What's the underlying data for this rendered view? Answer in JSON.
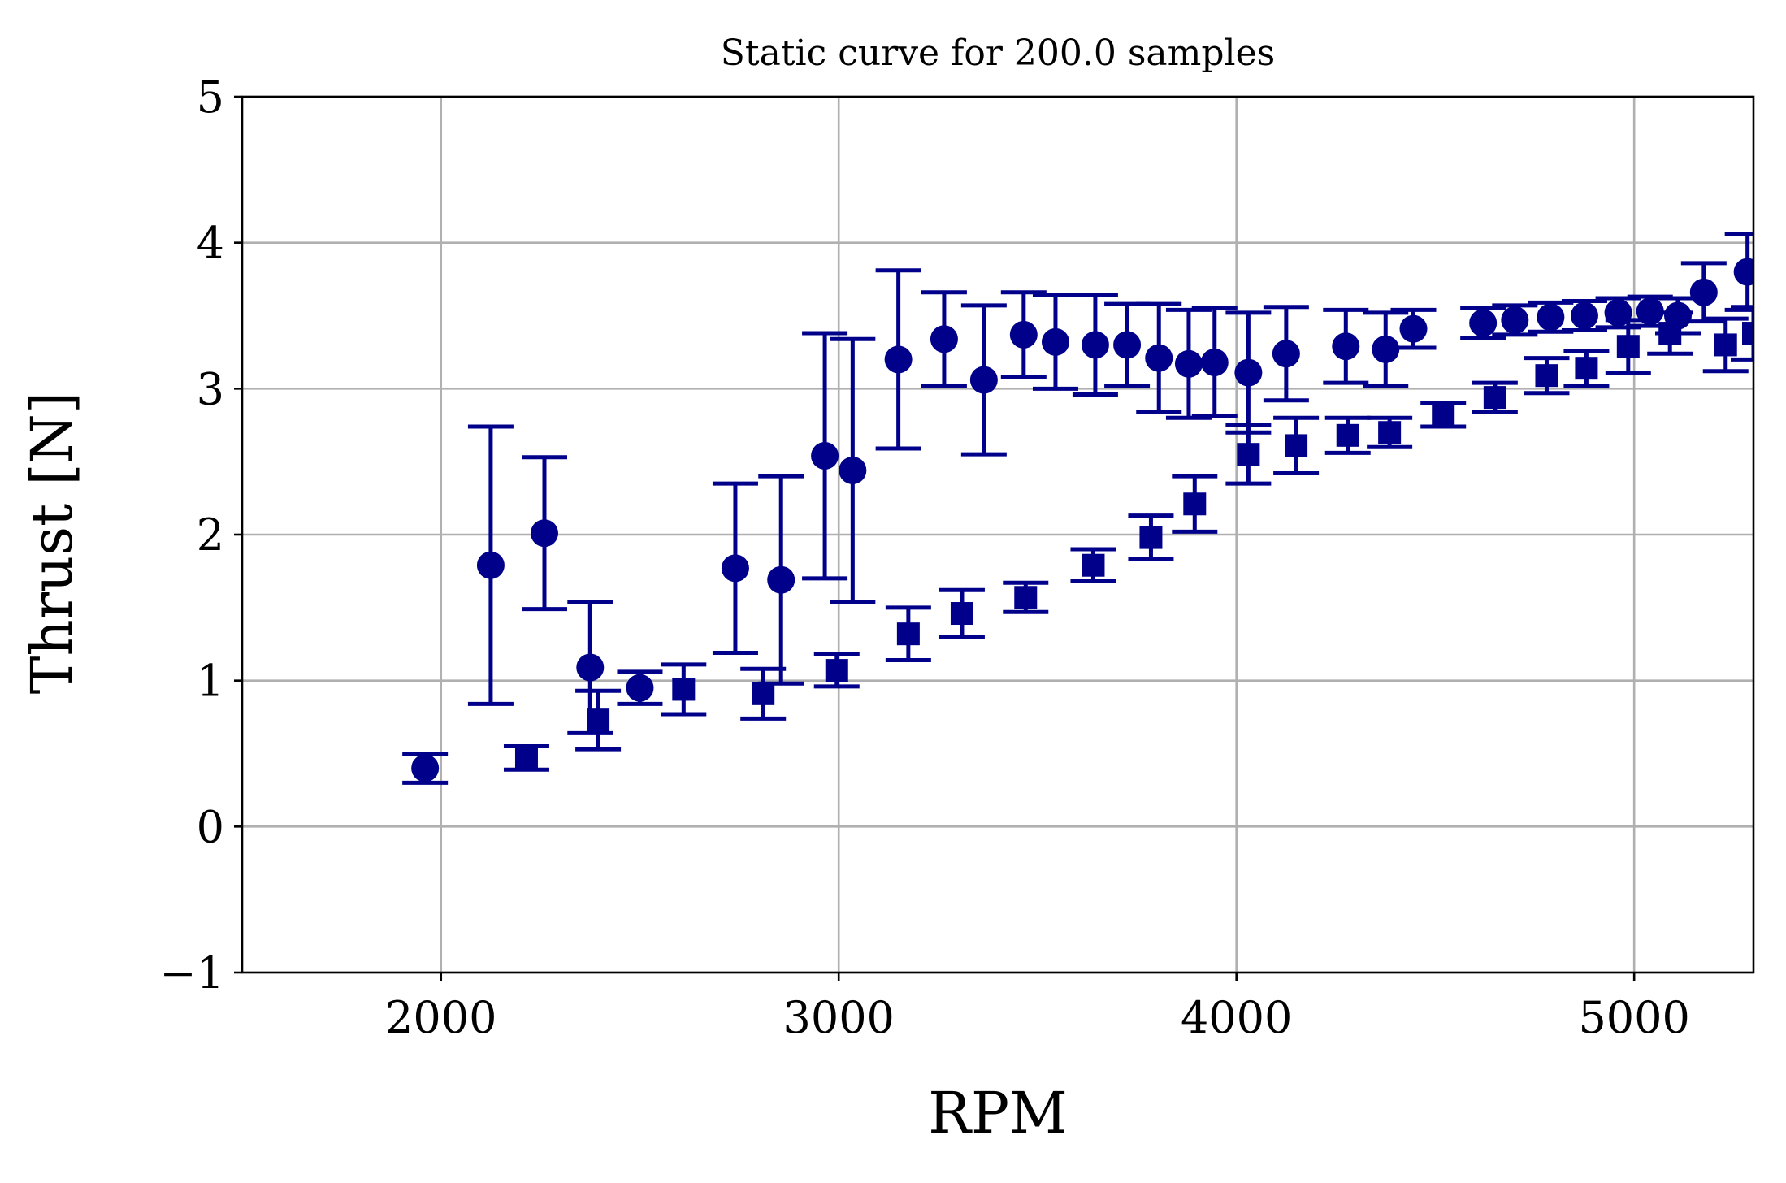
{
  "chart_data": {
    "type": "scatter",
    "title": "Static curve for 200.0 samples",
    "xlabel": "RPM",
    "ylabel": "Thrust [N]",
    "xlim": [
      1500,
      5300
    ],
    "ylim": [
      -1,
      5
    ],
    "xticks": [
      2000,
      3000,
      4000,
      5000
    ],
    "xtick_labels": [
      "2000",
      "3000",
      "4000",
      "5000"
    ],
    "yticks": [
      -1,
      0,
      1,
      2,
      3,
      4,
      5
    ],
    "ytick_labels": [
      "−1",
      "0",
      "1",
      "2",
      "3",
      "4",
      "5"
    ],
    "grid": true,
    "legend": false,
    "color": "#00008b",
    "series": [
      {
        "marker": "circle",
        "points": [
          {
            "x": 1960,
            "y": 0.4,
            "err": 0.1
          },
          {
            "x": 2125,
            "y": 1.79,
            "err": 0.95
          },
          {
            "x": 2260,
            "y": 2.01,
            "err": 0.52
          },
          {
            "x": 2375,
            "y": 1.09,
            "err": 0.45
          },
          {
            "x": 2500,
            "y": 0.95,
            "err": 0.11
          },
          {
            "x": 2740,
            "y": 1.77,
            "err": 0.58
          },
          {
            "x": 2855,
            "y": 1.69,
            "err": 0.71
          },
          {
            "x": 2965,
            "y": 2.54,
            "err": 0.84
          },
          {
            "x": 3035,
            "y": 2.44,
            "err": 0.9
          },
          {
            "x": 3150,
            "y": 3.2,
            "err": 0.61
          },
          {
            "x": 3265,
            "y": 3.34,
            "err": 0.32
          },
          {
            "x": 3365,
            "y": 3.06,
            "err": 0.51
          },
          {
            "x": 3465,
            "y": 3.37,
            "err": 0.29
          },
          {
            "x": 3545,
            "y": 3.32,
            "err": 0.32
          },
          {
            "x": 3645,
            "y": 3.3,
            "err": 0.34
          },
          {
            "x": 3725,
            "y": 3.3,
            "err": 0.28
          },
          {
            "x": 3805,
            "y": 3.21,
            "err": 0.37
          },
          {
            "x": 3880,
            "y": 3.17,
            "err": 0.37
          },
          {
            "x": 3945,
            "y": 3.18,
            "err": 0.37
          },
          {
            "x": 4030,
            "y": 3.11,
            "err": 0.41
          },
          {
            "x": 4125,
            "y": 3.24,
            "err": 0.32
          },
          {
            "x": 4275,
            "y": 3.29,
            "err": 0.25
          },
          {
            "x": 4375,
            "y": 3.27,
            "err": 0.25
          },
          {
            "x": 4445,
            "y": 3.41,
            "err": 0.13
          },
          {
            "x": 4620,
            "y": 3.45,
            "err": 0.1
          },
          {
            "x": 4700,
            "y": 3.47,
            "err": 0.1
          },
          {
            "x": 4790,
            "y": 3.49,
            "err": 0.1
          },
          {
            "x": 4875,
            "y": 3.5,
            "err": 0.1
          },
          {
            "x": 4960,
            "y": 3.52,
            "err": 0.1
          },
          {
            "x": 5040,
            "y": 3.53,
            "err": 0.1
          },
          {
            "x": 5110,
            "y": 3.5,
            "err": 0.12
          },
          {
            "x": 5175,
            "y": 3.66,
            "err": 0.2
          },
          {
            "x": 5285,
            "y": 3.8,
            "err": 0.26
          }
        ]
      },
      {
        "marker": "square",
        "points": [
          {
            "x": 2215,
            "y": 0.47,
            "err": 0.08
          },
          {
            "x": 2395,
            "y": 0.73,
            "err": 0.2
          },
          {
            "x": 2610,
            "y": 0.94,
            "err": 0.17
          },
          {
            "x": 2810,
            "y": 0.91,
            "err": 0.17
          },
          {
            "x": 2995,
            "y": 1.07,
            "err": 0.11
          },
          {
            "x": 3175,
            "y": 1.32,
            "err": 0.18
          },
          {
            "x": 3310,
            "y": 1.46,
            "err": 0.16
          },
          {
            "x": 3470,
            "y": 1.57,
            "err": 0.1
          },
          {
            "x": 3640,
            "y": 1.79,
            "err": 0.11
          },
          {
            "x": 3785,
            "y": 1.98,
            "err": 0.15
          },
          {
            "x": 3895,
            "y": 2.21,
            "err": 0.19
          },
          {
            "x": 4030,
            "y": 2.55,
            "err": 0.2
          },
          {
            "x": 4150,
            "y": 2.61,
            "err": 0.19
          },
          {
            "x": 4280,
            "y": 2.68,
            "err": 0.12
          },
          {
            "x": 4385,
            "y": 2.7,
            "err": 0.1
          },
          {
            "x": 4520,
            "y": 2.82,
            "err": 0.08
          },
          {
            "x": 4650,
            "y": 2.94,
            "err": 0.1
          },
          {
            "x": 4780,
            "y": 3.09,
            "err": 0.12
          },
          {
            "x": 4880,
            "y": 3.14,
            "err": 0.12
          },
          {
            "x": 4985,
            "y": 3.29,
            "err": 0.18
          },
          {
            "x": 5090,
            "y": 3.38,
            "err": 0.14
          },
          {
            "x": 5230,
            "y": 3.3,
            "err": 0.18
          },
          {
            "x": 5300,
            "y": 3.38,
            "err": 0.18
          }
        ]
      }
    ]
  }
}
